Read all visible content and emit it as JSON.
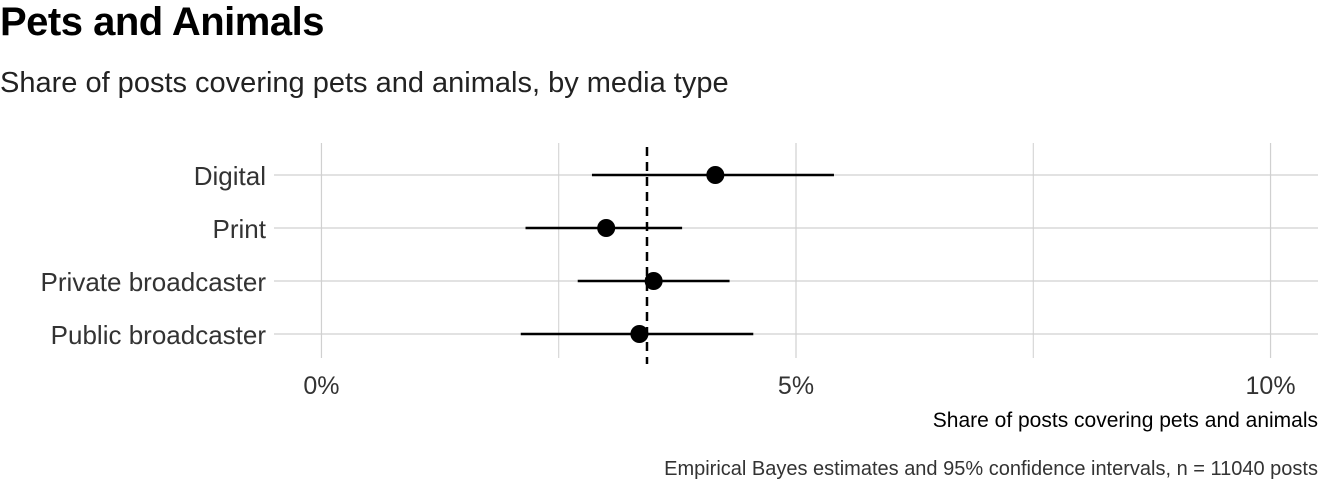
{
  "title": "Pets and Animals",
  "subtitle": "Share of posts covering pets and animals, by media type",
  "chart_data": {
    "type": "scatter",
    "title": "Pets and Animals",
    "subtitle": "Share of posts covering pets and animals, by media type",
    "xlabel": "Share of posts covering pets and animals",
    "ylabel": "",
    "caption": "Empirical Bayes estimates and 95% confidence intervals, n = 11040 posts",
    "xlim": [
      -0.5,
      10.5
    ],
    "x_ticks": [
      0,
      5,
      10
    ],
    "x_tick_labels": [
      "0%",
      "5%",
      "10%"
    ],
    "x_minor_ticks": [
      2.5,
      7.5
    ],
    "grid": true,
    "reference_line": {
      "value": 3.43,
      "style": "dashed"
    },
    "categories": [
      "Digital",
      "Print",
      "Private broadcaster",
      "Public broadcaster"
    ],
    "estimates": [
      4.15,
      3.0,
      3.5,
      3.35
    ],
    "ci_low": [
      2.85,
      2.15,
      2.7,
      2.1
    ],
    "ci_high": [
      5.4,
      3.8,
      4.3,
      4.55
    ],
    "colors": {
      "point": "#000000",
      "grid": "#d0d0d0",
      "text": "#333333"
    }
  }
}
